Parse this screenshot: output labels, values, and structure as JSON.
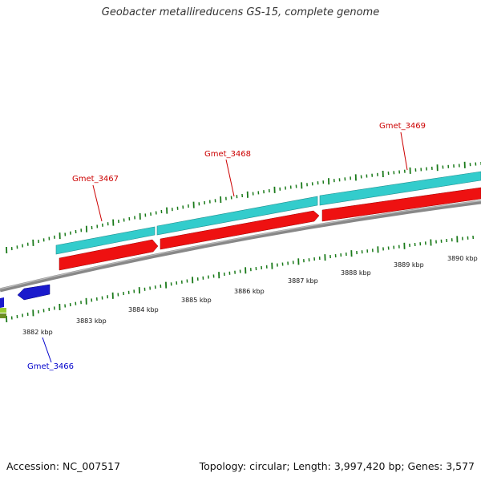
{
  "title": "Geobacter metallireducens GS-15, complete genome",
  "accession": "Accession: NC_007517",
  "topology": "Topology: circular; Length: 3,997,420 bp; Genes: 3,577",
  "colors": {
    "cds_forward": "#33cccc",
    "cds_forward_dark": "#1f8f8f",
    "gene_forward": "#ee1111",
    "gene_reverse": "#1a1acc",
    "label_forward": "#cc0000",
    "label_reverse": "#0000cc",
    "backbone": "#888888",
    "tick": "#1a7a1a",
    "lime": "#99cc33"
  },
  "kbp_labels": [
    "3882 kbp",
    "3883 kbp",
    "3884 kbp",
    "3885 kbp",
    "3886 kbp",
    "3887 kbp",
    "3888 kbp",
    "3889 kbp",
    "3890 kbp"
  ],
  "genes": {
    "g3466": "Gmet_3466",
    "g3467": "Gmet_3467",
    "g3468": "Gmet_3468",
    "g3469": "Gmet_3469"
  }
}
